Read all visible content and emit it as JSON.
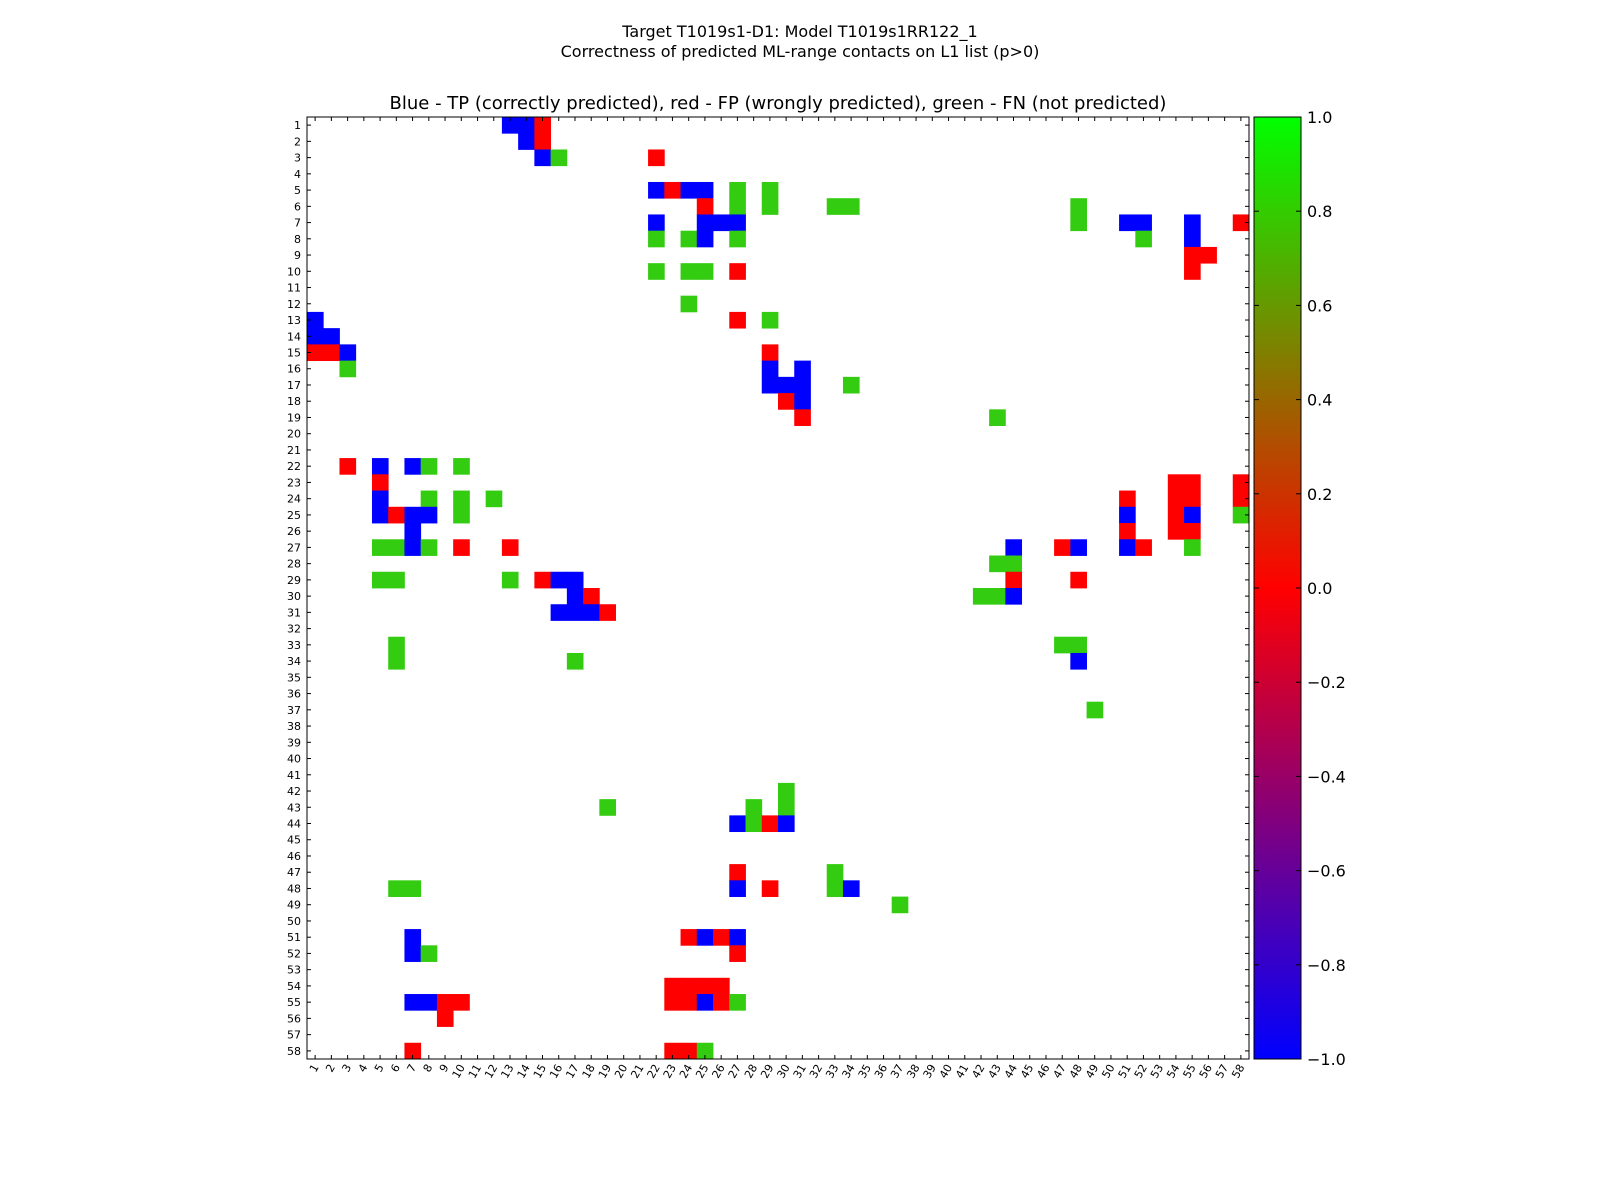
{
  "figure": {
    "title_line1": "Target T1019s1-D1: Model T1019s1RR122_1",
    "title_line2": "Correctness of predicted ML-range contacts on L1 list (p>0)",
    "axes_title": "Blue - TP (correctly predicted), red - FP (wrongly predicted), green - FN (not predicted)"
  },
  "chart_data": {
    "type": "heatmap",
    "n": 58,
    "x_tick_labels": [
      "1",
      "2",
      "3",
      "4",
      "5",
      "6",
      "7",
      "8",
      "9",
      "10",
      "11",
      "12",
      "13",
      "14",
      "15",
      "16",
      "17",
      "18",
      "19",
      "20",
      "21",
      "22",
      "23",
      "24",
      "25",
      "26",
      "27",
      "28",
      "29",
      "30",
      "31",
      "32",
      "33",
      "34",
      "35",
      "36",
      "37",
      "38",
      "39",
      "40",
      "41",
      "42",
      "43",
      "44",
      "45",
      "46",
      "47",
      "48",
      "49",
      "50",
      "51",
      "52",
      "53",
      "54",
      "55",
      "56",
      "57",
      "58"
    ],
    "y_tick_labels": [
      "1",
      "2",
      "3",
      "4",
      "5",
      "6",
      "7",
      "8",
      "9",
      "10",
      "11",
      "12",
      "13",
      "14",
      "15",
      "16",
      "17",
      "18",
      "19",
      "20",
      "21",
      "22",
      "23",
      "24",
      "25",
      "26",
      "27",
      "28",
      "29",
      "30",
      "31",
      "32",
      "33",
      "34",
      "35",
      "36",
      "37",
      "38",
      "39",
      "40",
      "41",
      "42",
      "43",
      "44",
      "45",
      "46",
      "47",
      "48",
      "49",
      "50",
      "51",
      "52",
      "53",
      "54",
      "55",
      "56",
      "57",
      "58"
    ],
    "value_legend": {
      "TP": -1,
      "FP": 0,
      "FN": 0.8
    },
    "colorbar": {
      "min": -1.0,
      "max": 1.0,
      "ticks": [
        "-1.0",
        "-0.8",
        "-0.6",
        "-0.4",
        "-0.2",
        "0.0",
        "0.2",
        "0.4",
        "0.6",
        "0.8",
        "1.0"
      ],
      "stops": [
        {
          "v": -1.0,
          "color": "#0000ff"
        },
        {
          "v": 0.0,
          "color": "#ff0000"
        },
        {
          "v": 1.0,
          "color": "#00ff00"
        }
      ]
    },
    "cell_colors": {
      "TP": "#0000ff",
      "FP": "#ff0000",
      "FN": "#33cc11"
    },
    "cells": [
      [
        1,
        13,
        "TP"
      ],
      [
        1,
        14,
        "TP"
      ],
      [
        1,
        15,
        "FP"
      ],
      [
        2,
        14,
        "TP"
      ],
      [
        2,
        15,
        "FP"
      ],
      [
        3,
        15,
        "TP"
      ],
      [
        3,
        16,
        "FN"
      ],
      [
        3,
        22,
        "FP"
      ],
      [
        5,
        22,
        "TP"
      ],
      [
        5,
        23,
        "FP"
      ],
      [
        5,
        24,
        "TP"
      ],
      [
        5,
        25,
        "TP"
      ],
      [
        5,
        27,
        "FN"
      ],
      [
        5,
        29,
        "FN"
      ],
      [
        6,
        25,
        "FP"
      ],
      [
        6,
        27,
        "FN"
      ],
      [
        6,
        29,
        "FN"
      ],
      [
        6,
        33,
        "FN"
      ],
      [
        6,
        34,
        "FN"
      ],
      [
        6,
        48,
        "FN"
      ],
      [
        7,
        22,
        "TP"
      ],
      [
        7,
        25,
        "TP"
      ],
      [
        7,
        26,
        "TP"
      ],
      [
        7,
        27,
        "TP"
      ],
      [
        7,
        48,
        "FN"
      ],
      [
        7,
        51,
        "TP"
      ],
      [
        7,
        52,
        "TP"
      ],
      [
        7,
        55,
        "TP"
      ],
      [
        7,
        58,
        "FP"
      ],
      [
        8,
        22,
        "FN"
      ],
      [
        8,
        24,
        "FN"
      ],
      [
        8,
        25,
        "TP"
      ],
      [
        8,
        27,
        "FN"
      ],
      [
        8,
        52,
        "FN"
      ],
      [
        8,
        55,
        "TP"
      ],
      [
        9,
        55,
        "FP"
      ],
      [
        9,
        56,
        "FP"
      ],
      [
        10,
        22,
        "FN"
      ],
      [
        10,
        24,
        "FN"
      ],
      [
        10,
        25,
        "FN"
      ],
      [
        10,
        27,
        "FP"
      ],
      [
        10,
        55,
        "FP"
      ],
      [
        12,
        24,
        "FN"
      ],
      [
        13,
        1,
        "TP"
      ],
      [
        13,
        27,
        "FP"
      ],
      [
        13,
        29,
        "FN"
      ],
      [
        14,
        1,
        "TP"
      ],
      [
        14,
        2,
        "TP"
      ],
      [
        15,
        1,
        "FP"
      ],
      [
        15,
        2,
        "FP"
      ],
      [
        15,
        3,
        "TP"
      ],
      [
        15,
        29,
        "FP"
      ],
      [
        16,
        3,
        "FN"
      ],
      [
        16,
        29,
        "TP"
      ],
      [
        16,
        31,
        "TP"
      ],
      [
        17,
        29,
        "TP"
      ],
      [
        17,
        30,
        "TP"
      ],
      [
        17,
        31,
        "TP"
      ],
      [
        17,
        34,
        "FN"
      ],
      [
        18,
        30,
        "FP"
      ],
      [
        18,
        31,
        "TP"
      ],
      [
        19,
        31,
        "FP"
      ],
      [
        19,
        43,
        "FN"
      ],
      [
        22,
        3,
        "FP"
      ],
      [
        22,
        5,
        "TP"
      ],
      [
        22,
        7,
        "TP"
      ],
      [
        22,
        8,
        "FN"
      ],
      [
        22,
        10,
        "FN"
      ],
      [
        23,
        5,
        "FP"
      ],
      [
        23,
        54,
        "FP"
      ],
      [
        23,
        55,
        "FP"
      ],
      [
        23,
        58,
        "FP"
      ],
      [
        24,
        5,
        "TP"
      ],
      [
        24,
        8,
        "FN"
      ],
      [
        24,
        10,
        "FN"
      ],
      [
        24,
        12,
        "FN"
      ],
      [
        24,
        51,
        "FP"
      ],
      [
        24,
        54,
        "FP"
      ],
      [
        24,
        55,
        "FP"
      ],
      [
        24,
        58,
        "FP"
      ],
      [
        25,
        5,
        "TP"
      ],
      [
        25,
        6,
        "FP"
      ],
      [
        25,
        7,
        "TP"
      ],
      [
        25,
        8,
        "TP"
      ],
      [
        25,
        10,
        "FN"
      ],
      [
        25,
        51,
        "TP"
      ],
      [
        25,
        54,
        "FP"
      ],
      [
        25,
        55,
        "TP"
      ],
      [
        25,
        58,
        "FN"
      ],
      [
        26,
        7,
        "TP"
      ],
      [
        26,
        51,
        "FP"
      ],
      [
        26,
        54,
        "FP"
      ],
      [
        26,
        55,
        "FP"
      ],
      [
        27,
        5,
        "FN"
      ],
      [
        27,
        6,
        "FN"
      ],
      [
        27,
        7,
        "TP"
      ],
      [
        27,
        8,
        "FN"
      ],
      [
        27,
        10,
        "FP"
      ],
      [
        27,
        13,
        "FP"
      ],
      [
        27,
        44,
        "TP"
      ],
      [
        27,
        47,
        "FP"
      ],
      [
        27,
        48,
        "TP"
      ],
      [
        27,
        51,
        "TP"
      ],
      [
        27,
        52,
        "FP"
      ],
      [
        27,
        55,
        "FN"
      ],
      [
        28,
        43,
        "FN"
      ],
      [
        28,
        44,
        "FN"
      ],
      [
        29,
        5,
        "FN"
      ],
      [
        29,
        6,
        "FN"
      ],
      [
        29,
        13,
        "FN"
      ],
      [
        29,
        15,
        "FP"
      ],
      [
        29,
        16,
        "TP"
      ],
      [
        29,
        17,
        "TP"
      ],
      [
        29,
        44,
        "FP"
      ],
      [
        29,
        48,
        "FP"
      ],
      [
        30,
        17,
        "TP"
      ],
      [
        30,
        18,
        "FP"
      ],
      [
        30,
        42,
        "FN"
      ],
      [
        30,
        43,
        "FN"
      ],
      [
        30,
        44,
        "TP"
      ],
      [
        31,
        16,
        "TP"
      ],
      [
        31,
        17,
        "TP"
      ],
      [
        31,
        18,
        "TP"
      ],
      [
        31,
        19,
        "FP"
      ],
      [
        33,
        6,
        "FN"
      ],
      [
        33,
        47,
        "FN"
      ],
      [
        33,
        48,
        "FN"
      ],
      [
        34,
        6,
        "FN"
      ],
      [
        34,
        17,
        "FN"
      ],
      [
        34,
        48,
        "TP"
      ],
      [
        37,
        49,
        "FN"
      ],
      [
        42,
        30,
        "FN"
      ],
      [
        43,
        19,
        "FN"
      ],
      [
        43,
        28,
        "FN"
      ],
      [
        43,
        30,
        "FN"
      ],
      [
        44,
        27,
        "TP"
      ],
      [
        44,
        28,
        "FN"
      ],
      [
        44,
        29,
        "FP"
      ],
      [
        44,
        30,
        "TP"
      ],
      [
        47,
        27,
        "FP"
      ],
      [
        47,
        33,
        "FN"
      ],
      [
        48,
        6,
        "FN"
      ],
      [
        48,
        7,
        "FN"
      ],
      [
        48,
        27,
        "TP"
      ],
      [
        48,
        29,
        "FP"
      ],
      [
        48,
        33,
        "FN"
      ],
      [
        48,
        34,
        "TP"
      ],
      [
        49,
        37,
        "FN"
      ],
      [
        51,
        7,
        "TP"
      ],
      [
        51,
        24,
        "FP"
      ],
      [
        51,
        25,
        "TP"
      ],
      [
        51,
        26,
        "FP"
      ],
      [
        51,
        27,
        "TP"
      ],
      [
        52,
        7,
        "TP"
      ],
      [
        52,
        8,
        "FN"
      ],
      [
        52,
        27,
        "FP"
      ],
      [
        54,
        23,
        "FP"
      ],
      [
        54,
        24,
        "FP"
      ],
      [
        54,
        25,
        "FP"
      ],
      [
        54,
        26,
        "FP"
      ],
      [
        55,
        7,
        "TP"
      ],
      [
        55,
        8,
        "TP"
      ],
      [
        55,
        9,
        "FP"
      ],
      [
        55,
        10,
        "FP"
      ],
      [
        55,
        23,
        "FP"
      ],
      [
        55,
        24,
        "FP"
      ],
      [
        55,
        25,
        "TP"
      ],
      [
        55,
        26,
        "FP"
      ],
      [
        55,
        27,
        "FN"
      ],
      [
        56,
        9,
        "FP"
      ],
      [
        58,
        7,
        "FP"
      ],
      [
        58,
        23,
        "FP"
      ],
      [
        58,
        24,
        "FP"
      ],
      [
        58,
        25,
        "FN"
      ]
    ]
  }
}
